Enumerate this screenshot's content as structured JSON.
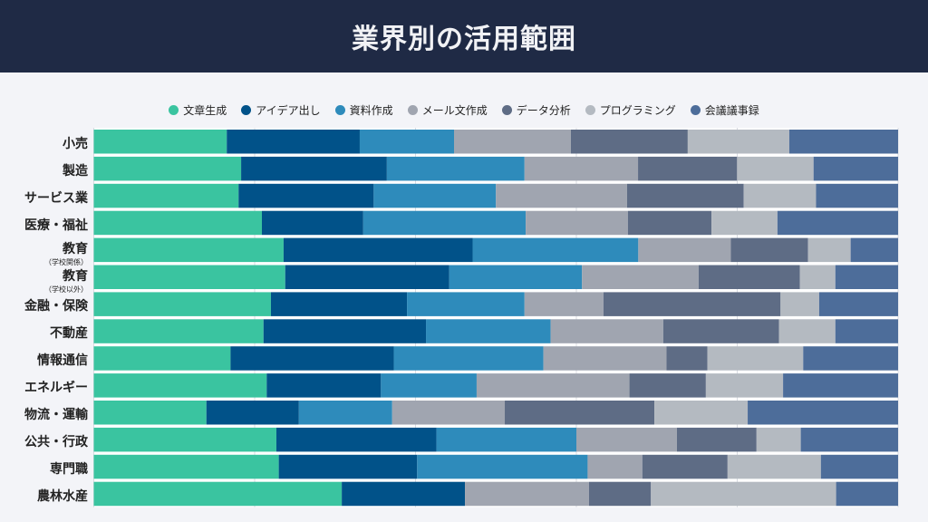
{
  "header": {
    "title": "業界別の活用範囲"
  },
  "chart_data": {
    "type": "bar",
    "orientation": "horizontal",
    "stacked": "percent",
    "title": "業界別の活用範囲",
    "xlim": [
      0,
      100
    ],
    "grid": true,
    "legend_position": "top",
    "categories": [
      {
        "label": "小売",
        "sub": ""
      },
      {
        "label": "製造",
        "sub": ""
      },
      {
        "label": "サービス業",
        "sub": ""
      },
      {
        "label": "医療・福祉",
        "sub": ""
      },
      {
        "label": "教育",
        "sub": "（学校関係）"
      },
      {
        "label": "教育",
        "sub": "（学校以外）"
      },
      {
        "label": "金融・保険",
        "sub": ""
      },
      {
        "label": "不動産",
        "sub": ""
      },
      {
        "label": "情報通信",
        "sub": ""
      },
      {
        "label": "エネルギー",
        "sub": ""
      },
      {
        "label": "物流・運輸",
        "sub": ""
      },
      {
        "label": "公共・行政",
        "sub": ""
      },
      {
        "label": "専門職",
        "sub": ""
      },
      {
        "label": "農林水産",
        "sub": ""
      }
    ],
    "series": [
      {
        "name": "文章生成",
        "color": "#3ac4a0",
        "values": [
          16.5,
          18.3,
          18.0,
          20.9,
          23.6,
          23.8,
          22.0,
          21.1,
          17.0,
          21.5,
          14.0,
          22.7,
          23.0,
          30.8
        ]
      },
      {
        "name": "アイデア出し",
        "color": "#015289",
        "values": [
          16.5,
          18.1,
          16.8,
          12.6,
          23.5,
          20.4,
          16.9,
          20.2,
          20.3,
          14.2,
          11.5,
          19.9,
          17.2,
          15.3
        ]
      },
      {
        "name": "資料作成",
        "color": "#2e8bbb",
        "values": [
          11.7,
          17.1,
          15.2,
          20.2,
          20.6,
          16.5,
          14.6,
          15.5,
          18.6,
          11.9,
          11.6,
          17.4,
          21.2,
          0
        ]
      },
      {
        "name": "メール文作成",
        "color": "#a0a5b0",
        "values": [
          14.5,
          14.1,
          16.3,
          12.7,
          11.5,
          14.5,
          9.8,
          14.0,
          15.3,
          19.0,
          14.0,
          12.5,
          6.8,
          15.4
        ]
      },
      {
        "name": "データ分析",
        "color": "#5e6c85",
        "values": [
          14.5,
          12.3,
          14.5,
          10.4,
          9.6,
          12.6,
          22.0,
          14.4,
          5.1,
          9.5,
          18.6,
          9.9,
          10.6,
          7.7
        ]
      },
      {
        "name": "プログラミング",
        "color": "#b4bac1",
        "values": [
          12.6,
          9.5,
          9.0,
          8.2,
          5.3,
          4.4,
          4.8,
          7.0,
          11.9,
          9.6,
          11.6,
          5.5,
          11.6,
          23.0
        ]
      },
      {
        "name": "会議議事録",
        "color": "#4d6d9a",
        "values": [
          13.5,
          10.5,
          10.2,
          15.0,
          5.9,
          7.8,
          9.8,
          7.8,
          11.8,
          14.3,
          18.7,
          12.1,
          9.6,
          7.7
        ]
      }
    ]
  }
}
